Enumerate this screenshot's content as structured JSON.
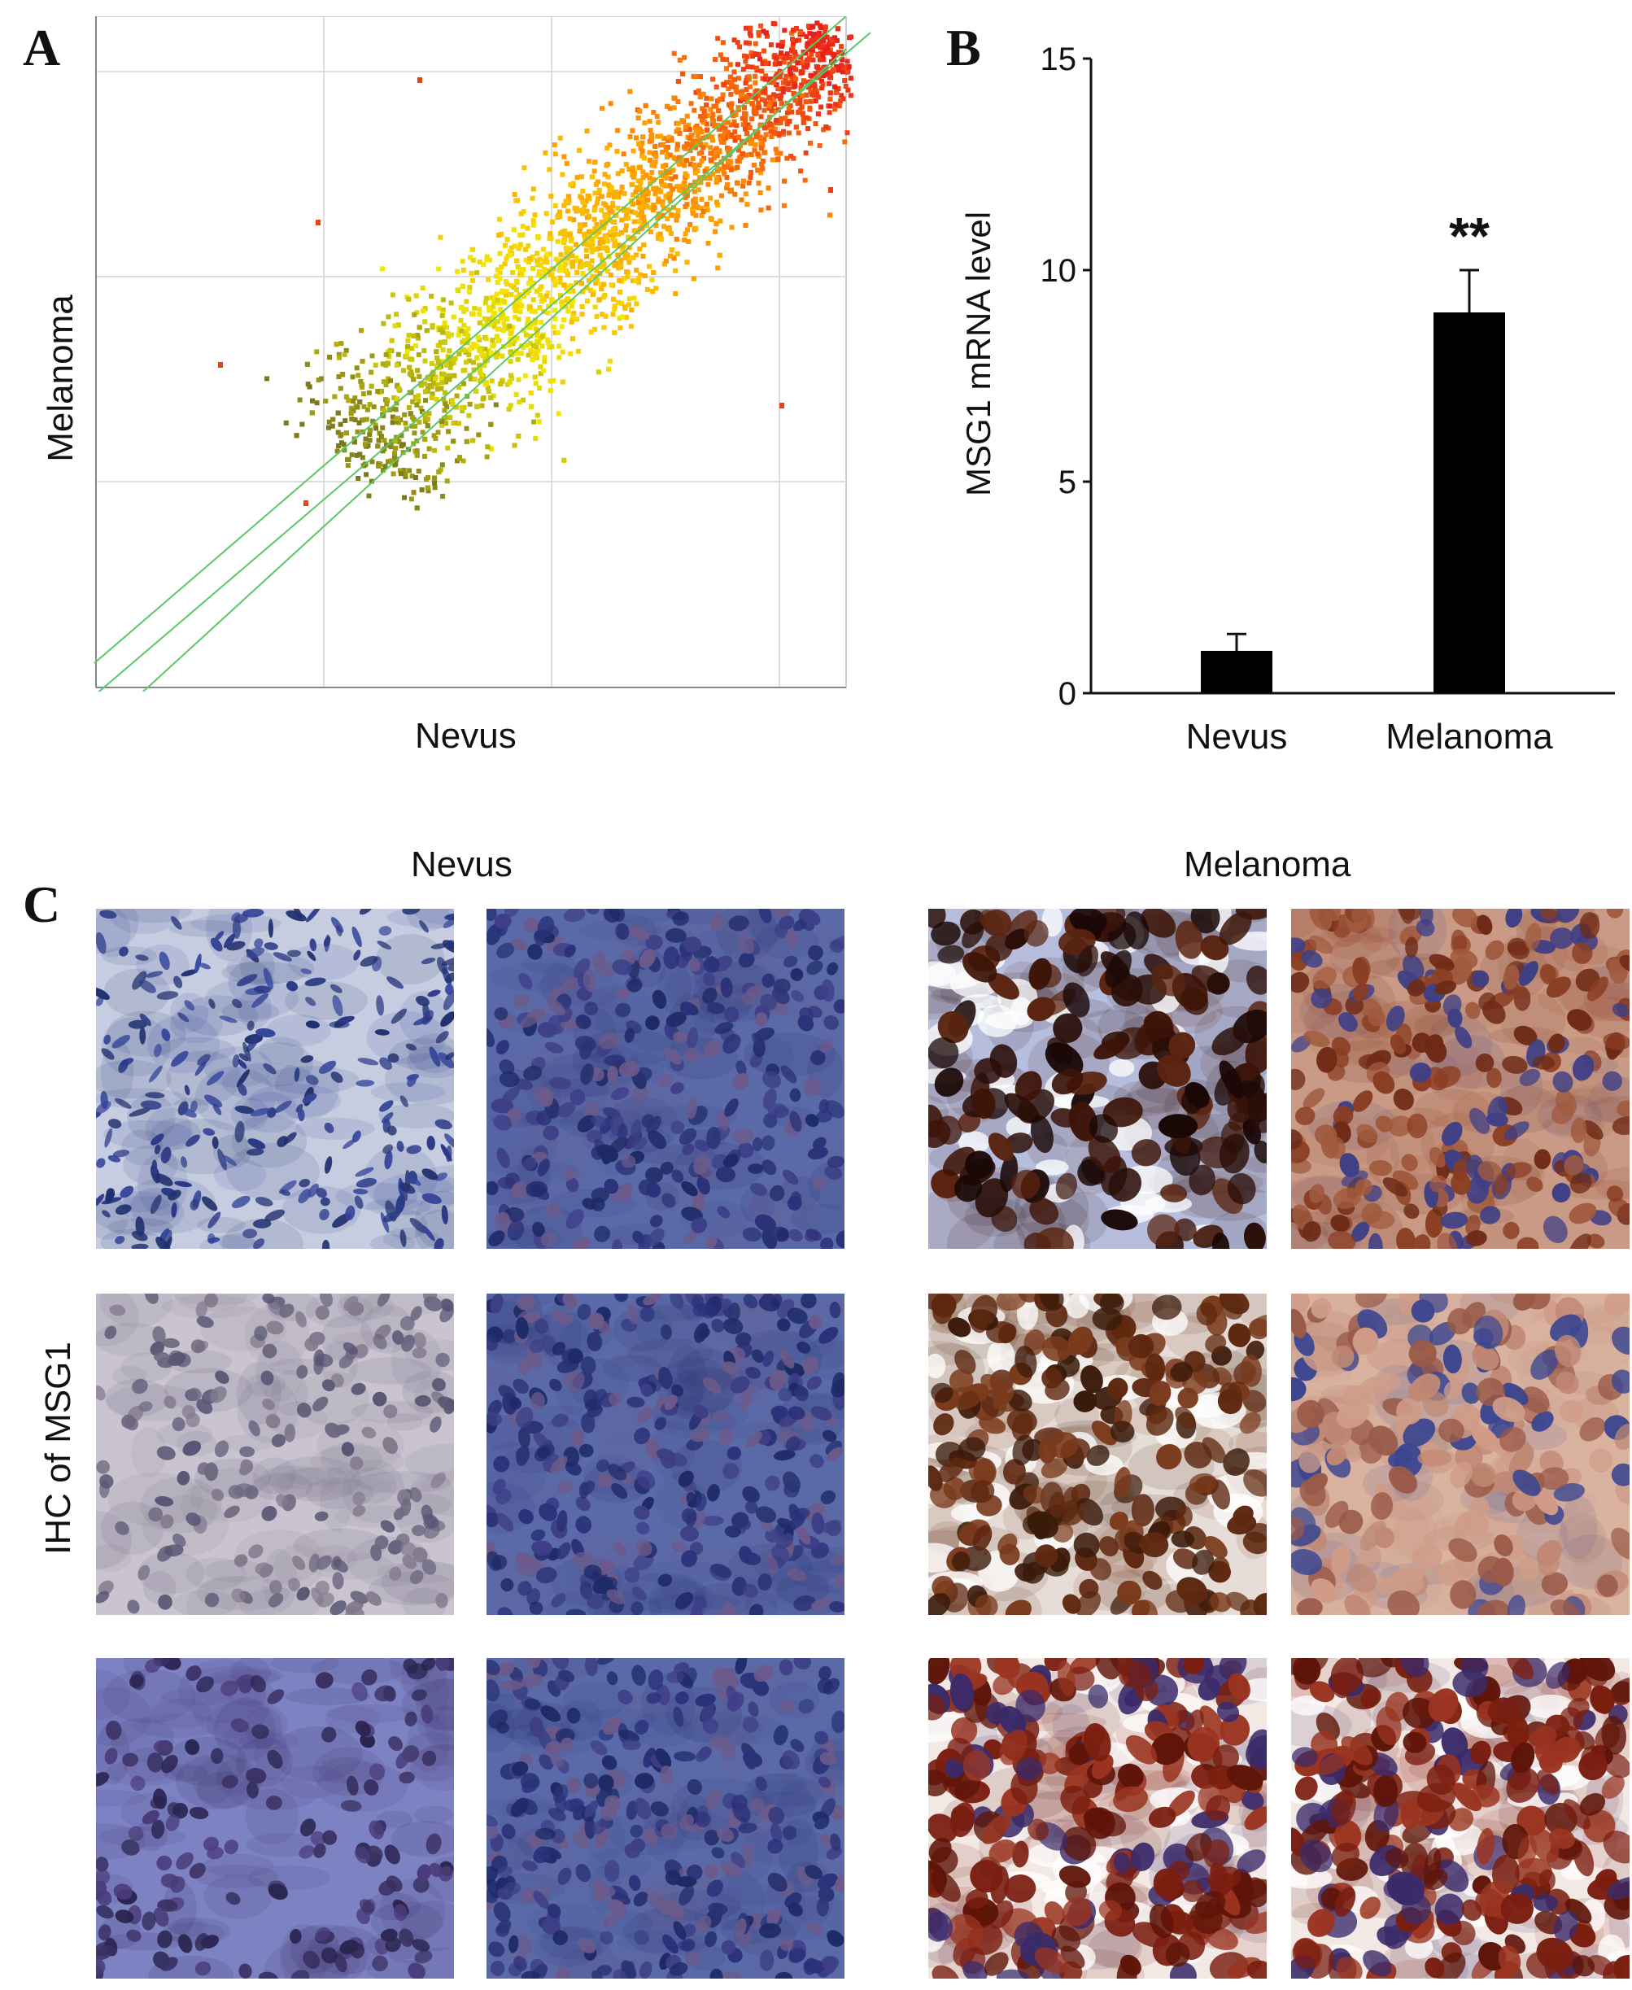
{
  "figure": {
    "panel_labels": {
      "a": "A",
      "b": "B",
      "c": "C"
    },
    "panel_c": {
      "col_nevus": "Nevus",
      "col_melanoma": "Melanoma",
      "row_label": "IHC of MSG1",
      "images": [
        {
          "group": "Nevus",
          "stain": "blue",
          "texture": "spindle"
        },
        {
          "group": "Nevus",
          "stain": "blue-violet",
          "texture": "dense"
        },
        {
          "group": "Melanoma",
          "stain": "dark-brown",
          "texture": "clumped"
        },
        {
          "group": "Melanoma",
          "stain": "brown",
          "texture": "diffuse"
        },
        {
          "group": "Nevus",
          "stain": "pale-grey",
          "texture": "epithelial"
        },
        {
          "group": "Nevus",
          "stain": "blue-violet",
          "texture": "dense"
        },
        {
          "group": "Melanoma",
          "stain": "brown",
          "texture": "granular"
        },
        {
          "group": "Melanoma",
          "stain": "light-brown",
          "texture": "diffuse"
        },
        {
          "group": "Nevus",
          "stain": "violet",
          "texture": "sparse"
        },
        {
          "group": "Nevus",
          "stain": "blue-violet",
          "texture": "lymphoid"
        },
        {
          "group": "Melanoma",
          "stain": "red-brown",
          "texture": "clumped"
        },
        {
          "group": "Melanoma",
          "stain": "red-brown",
          "texture": "dense"
        }
      ]
    }
  },
  "chart_data": [
    {
      "type": "scatter",
      "title": "",
      "xlabel": "Nevus",
      "ylabel": "Melanoma",
      "x_tick_labels": [],
      "y_tick_labels": [],
      "grid": true,
      "reference_lines": [
        "y = x",
        "2-fold up",
        "2-fold down"
      ],
      "reference_line_color": "#59c86a",
      "color_gradient": [
        "#7a7a1a",
        "#f2ea00",
        "#ff9800",
        "#e8201c"
      ],
      "description_points": "dense cloud of several thousand gene probes along the diagonal, low-intensity end yellow, high-intensity end red"
    },
    {
      "type": "bar",
      "categories": [
        "Nevus",
        "Melanoma"
      ],
      "values": [
        1.0,
        9.0
      ],
      "error_bars": [
        0.4,
        1.0
      ],
      "ylabel": "MSG1 mRNA level",
      "xlabel": "",
      "ylim": [
        0,
        15
      ],
      "yticks": [
        0,
        5,
        10,
        15
      ],
      "annotation": "**",
      "annotation_category": "Melanoma",
      "bar_color": "#000000"
    }
  ]
}
